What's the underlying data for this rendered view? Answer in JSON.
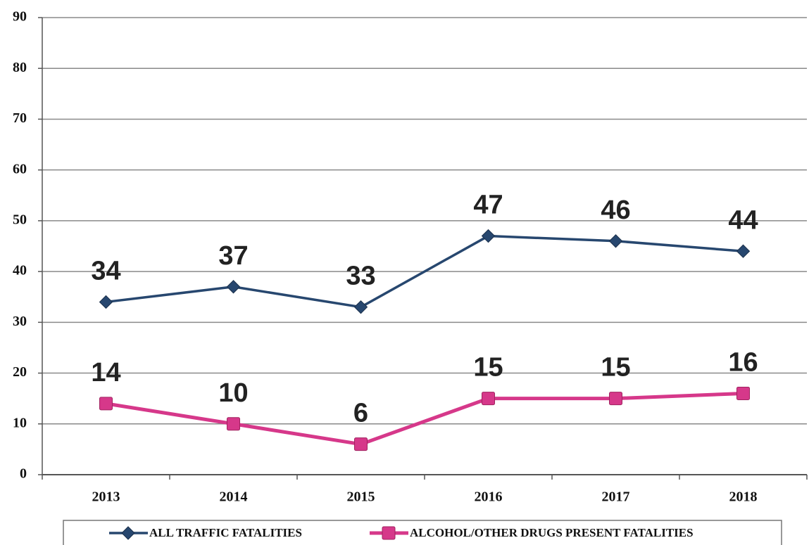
{
  "chart_data": {
    "type": "line",
    "categories": [
      "2013",
      "2014",
      "2015",
      "2016",
      "2017",
      "2018"
    ],
    "series": [
      {
        "name": "ALL TRAFFIC FATALITIES",
        "color": "#27476f",
        "marker": "diamond",
        "values": [
          34,
          37,
          33,
          47,
          46,
          44
        ]
      },
      {
        "name": "ALCOHOL/OTHER DRUGS PRESENT FATALITIES",
        "color": "#d6388a",
        "marker": "square",
        "values": [
          14,
          10,
          6,
          15,
          15,
          16
        ]
      }
    ],
    "ylim": [
      0,
      90
    ],
    "yticks": [
      0,
      10,
      20,
      30,
      40,
      50,
      60,
      70,
      80,
      90
    ],
    "grid": true,
    "legend": "bottom"
  }
}
